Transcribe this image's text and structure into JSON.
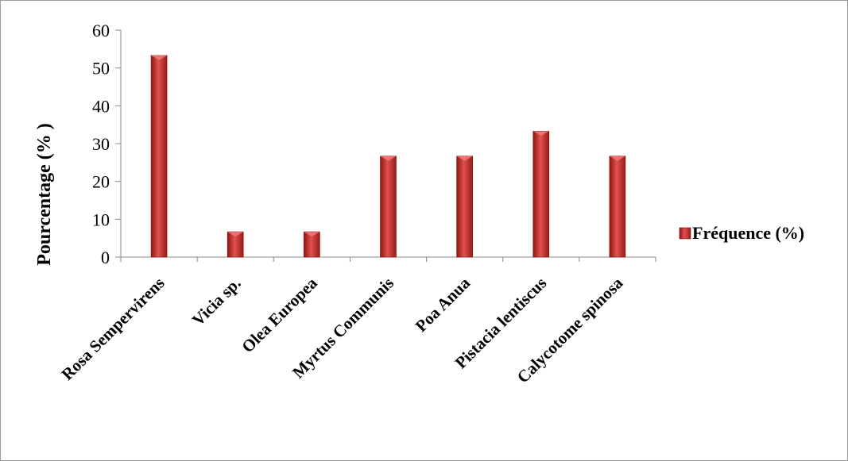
{
  "chart_data": {
    "type": "bar",
    "title": "",
    "xlabel": "",
    "ylabel": "Pourcentage (% )",
    "categories": [
      "Rosa Sempervirens",
      "Vicia sp.",
      "Olea Europea",
      "Myrtus Communis",
      "Poa  Anua",
      "Pistacia lentiscus",
      "Calycotome spinosa"
    ],
    "series": [
      {
        "name": "Fréquence (%)",
        "values": [
          53.3,
          6.7,
          6.7,
          26.7,
          26.7,
          33.3,
          26.7
        ],
        "color": "#c0282a"
      }
    ],
    "ylim": [
      0,
      60
    ],
    "yticks": [
      "0",
      "10",
      "20",
      "30",
      "40",
      "50",
      "60"
    ],
    "grid": false,
    "legend_position": "right"
  }
}
